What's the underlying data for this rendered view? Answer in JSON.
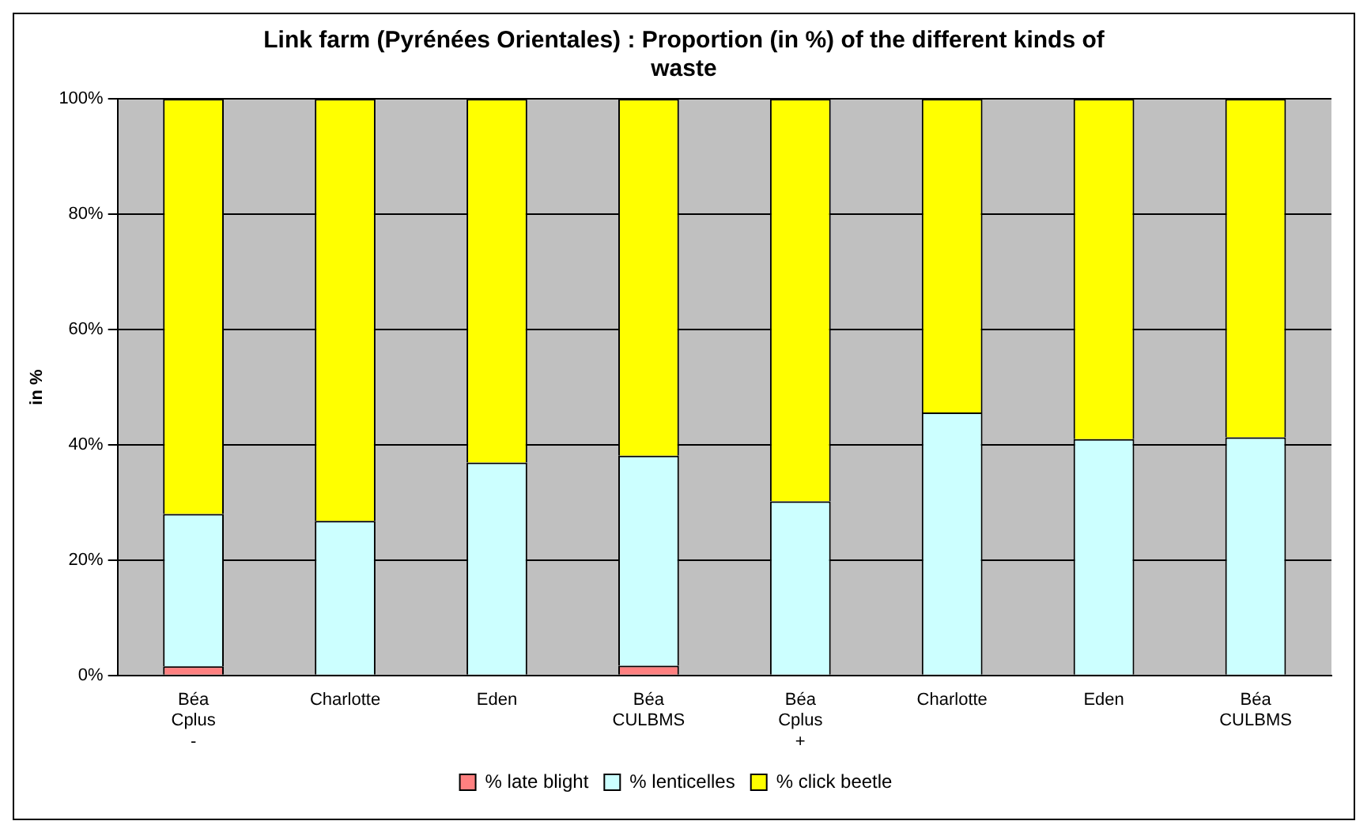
{
  "chart_data": {
    "type": "bar",
    "title": "Link farm (Pyrénées Orientales) : Proportion (in %) of the different kinds of waste",
    "ylabel": "in %",
    "categories": [
      "Béa\nCplus\n-",
      "Charlotte",
      "Eden",
      "Béa\nCULBMS",
      "Béa\nCplus\n+",
      "Charlotte",
      "Eden",
      "Béa\nCULBMS"
    ],
    "stacked": true,
    "ylim": [
      0,
      100
    ],
    "yticks": [
      {
        "value": 0,
        "label": "0%"
      },
      {
        "value": 20,
        "label": "20%"
      },
      {
        "value": 40,
        "label": "40%"
      },
      {
        "value": 60,
        "label": "60%"
      },
      {
        "value": 80,
        "label": "80%"
      },
      {
        "value": 100,
        "label": "100%"
      }
    ],
    "grid": "y",
    "legend": "bottom",
    "series": [
      {
        "name": "% late blight",
        "color": "#ff8080",
        "values": [
          1.6,
          0,
          0,
          1.7,
          0,
          0,
          0,
          0
        ]
      },
      {
        "name": "% lenticelles",
        "color": "#ccffff",
        "values": [
          26.4,
          26.8,
          36.9,
          36.4,
          30.2,
          45.6,
          41.0,
          41.3
        ]
      },
      {
        "name": "% click beetle",
        "color": "#ffff00",
        "values": [
          72.0,
          73.2,
          63.1,
          61.9,
          69.8,
          54.4,
          59.0,
          58.7
        ]
      }
    ]
  }
}
